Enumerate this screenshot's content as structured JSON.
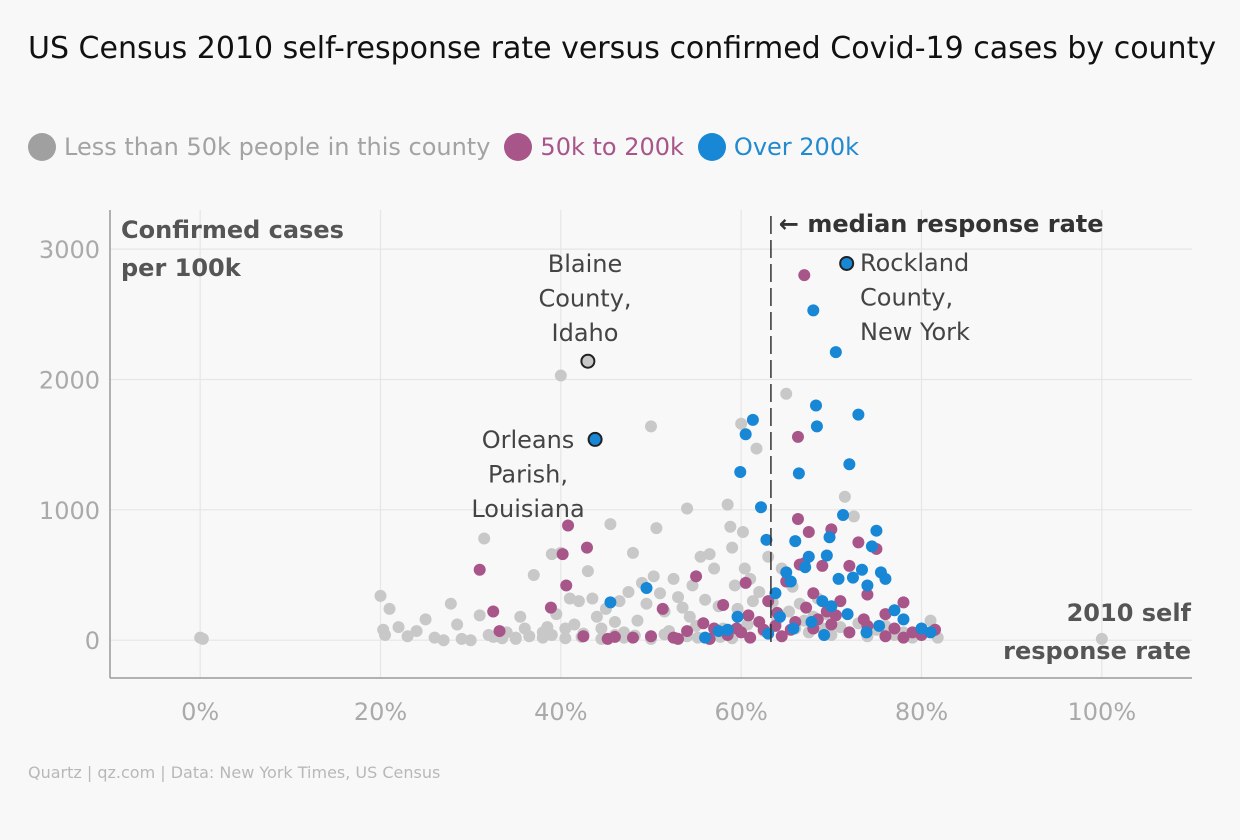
{
  "title": "US Census 2010 self-response rate versus confirmed Covid-19 cases by county",
  "legend": [
    {
      "label": "Less than 50k people in this county",
      "color": "#a3a3a3",
      "dot": "#a0a0a0"
    },
    {
      "label": "50k to 200k",
      "color": "#a8558a",
      "dot": "#a8558a"
    },
    {
      "label": "Over 200k",
      "color": "#238ad0",
      "dot": "#1787d6"
    }
  ],
  "source": "Quartz | qz.com | Data: New York Times, US Census",
  "colors": {
    "small": "#c8c8c8",
    "medium": "#a8558a",
    "large": "#1787d6",
    "axis": "#999999",
    "grid": "#e6e6e6",
    "label": "#555555",
    "tick": "#aaaaaa"
  },
  "chart_data": {
    "type": "scatter",
    "title": "US Census 2010 self-response rate versus confirmed Covid-19 cases by county",
    "xlabel": "2010 self response rate",
    "ylabel": "Confirmed cases per 100k",
    "ylabel_lines": [
      "Confirmed cases",
      "per 100k"
    ],
    "xlabel_lines": [
      "2010 self",
      "response rate"
    ],
    "xlim": [
      -10,
      110
    ],
    "ylim": [
      -290,
      3300
    ],
    "xticks": [
      0,
      20,
      40,
      60,
      80,
      100
    ],
    "xtick_labels": [
      "0%",
      "20%",
      "40%",
      "60%",
      "80%",
      "100%"
    ],
    "yticks": [
      0,
      1000,
      2000,
      3000
    ],
    "ytick_labels": [
      "0",
      "1000",
      "2000",
      "3000"
    ],
    "grid": true,
    "median": {
      "x": 63.3,
      "label": "← median response rate"
    },
    "annotations": [
      {
        "lines": [
          "Blaine",
          "County,",
          "Idaho"
        ],
        "x": 43.0,
        "y": 2140,
        "color": "#c8c8c8"
      },
      {
        "lines": [
          "Orleans",
          "Parish,",
          "Louisiana"
        ],
        "x": 43.8,
        "y": 1540,
        "color": "#1787d6"
      },
      {
        "lines": [
          "Rockland",
          "County,",
          "New York"
        ],
        "x": 71.7,
        "y": 2890,
        "color": "#1787d6"
      }
    ],
    "series": [
      {
        "name": "Less than 50k people in this county",
        "key": "small",
        "points": [
          [
            0,
            20
          ],
          [
            0.3,
            10
          ],
          [
            20,
            340
          ],
          [
            21,
            240
          ],
          [
            20.3,
            80
          ],
          [
            20.5,
            40
          ],
          [
            22,
            100
          ],
          [
            23,
            30
          ],
          [
            24,
            70
          ],
          [
            25,
            160
          ],
          [
            26,
            20
          ],
          [
            27,
            0
          ],
          [
            27.8,
            280
          ],
          [
            28.5,
            120
          ],
          [
            29,
            10
          ],
          [
            30,
            0
          ],
          [
            31,
            190
          ],
          [
            31.5,
            780
          ],
          [
            32,
            40
          ],
          [
            33,
            30
          ],
          [
            34,
            60
          ],
          [
            35,
            20
          ],
          [
            35.5,
            180
          ],
          [
            36,
            90
          ],
          [
            37,
            500
          ],
          [
            38,
            60
          ],
          [
            38.5,
            100
          ],
          [
            39,
            660
          ],
          [
            39.5,
            200
          ],
          [
            40,
            2030
          ],
          [
            40,
            670
          ],
          [
            40.5,
            90
          ],
          [
            41,
            320
          ],
          [
            41.5,
            120
          ],
          [
            42,
            300
          ],
          [
            42.5,
            50
          ],
          [
            43,
            530
          ],
          [
            43.5,
            320
          ],
          [
            44,
            180
          ],
          [
            44.5,
            90
          ],
          [
            45,
            240
          ],
          [
            45.5,
            890
          ],
          [
            46,
            140
          ],
          [
            46.5,
            300
          ],
          [
            47,
            60
          ],
          [
            47.5,
            370
          ],
          [
            48,
            670
          ],
          [
            48.5,
            150
          ],
          [
            49,
            440
          ],
          [
            49.5,
            280
          ],
          [
            50,
            1640
          ],
          [
            50.3,
            490
          ],
          [
            50.6,
            860
          ],
          [
            51,
            360
          ],
          [
            51.5,
            220
          ],
          [
            52,
            70
          ],
          [
            52.5,
            470
          ],
          [
            53,
            330
          ],
          [
            53.5,
            250
          ],
          [
            54,
            1010
          ],
          [
            54.3,
            180
          ],
          [
            54.6,
            420
          ],
          [
            55,
            110
          ],
          [
            55.5,
            640
          ],
          [
            56,
            310
          ],
          [
            56.5,
            660
          ],
          [
            57,
            550
          ],
          [
            57.5,
            260
          ],
          [
            58,
            90
          ],
          [
            58.5,
            1040
          ],
          [
            58.8,
            870
          ],
          [
            59,
            710
          ],
          [
            59.3,
            420
          ],
          [
            59.6,
            240
          ],
          [
            60,
            1660
          ],
          [
            60.2,
            830
          ],
          [
            60.4,
            550
          ],
          [
            60.7,
            120
          ],
          [
            61,
            470
          ],
          [
            61.3,
            300
          ],
          [
            61.7,
            1470
          ],
          [
            62,
            370
          ],
          [
            62.5,
            70
          ],
          [
            63,
            640
          ],
          [
            63.5,
            290
          ],
          [
            64,
            160
          ],
          [
            64.5,
            550
          ],
          [
            65,
            1890
          ],
          [
            65.3,
            220
          ],
          [
            65.7,
            410
          ],
          [
            66,
            90
          ],
          [
            66.5,
            280
          ],
          [
            67,
            150
          ],
          [
            67.5,
            60
          ],
          [
            68,
            180
          ],
          [
            68.5,
            320
          ],
          [
            69,
            90
          ],
          [
            69.5,
            200
          ],
          [
            70,
            40
          ],
          [
            71,
            100
          ],
          [
            71.5,
            1100
          ],
          [
            72,
            60
          ],
          [
            72.5,
            950
          ],
          [
            73,
            130
          ],
          [
            74,
            30
          ],
          [
            75,
            80
          ],
          [
            76,
            110
          ],
          [
            77,
            40
          ],
          [
            78,
            60
          ],
          [
            79,
            20
          ],
          [
            80,
            50
          ],
          [
            81,
            150
          ],
          [
            81.8,
            20
          ],
          [
            100,
            10
          ],
          [
            38,
            20
          ],
          [
            39,
            40
          ],
          [
            40.5,
            15
          ],
          [
            42.3,
            25
          ],
          [
            44.5,
            10
          ],
          [
            46,
            40
          ],
          [
            47,
            20
          ],
          [
            48.2,
            35
          ],
          [
            50,
            10
          ],
          [
            51.5,
            45
          ],
          [
            52.8,
            15
          ],
          [
            54,
            30
          ],
          [
            55.2,
            20
          ],
          [
            56.5,
            10
          ],
          [
            57.7,
            25
          ],
          [
            59,
            15
          ],
          [
            36.5,
            30
          ],
          [
            35,
            10
          ],
          [
            33.5,
            15
          ],
          [
            32.5,
            25
          ]
        ]
      },
      {
        "name": "50k to 200k",
        "key": "medium",
        "points": [
          [
            31,
            540
          ],
          [
            32.5,
            220
          ],
          [
            33.2,
            70
          ],
          [
            38.9,
            250
          ],
          [
            40.2,
            660
          ],
          [
            40.6,
            420
          ],
          [
            40.8,
            880
          ],
          [
            42.5,
            30
          ],
          [
            42.9,
            710
          ],
          [
            45.2,
            10
          ],
          [
            46,
            25
          ],
          [
            48,
            20
          ],
          [
            50,
            30
          ],
          [
            51.3,
            240
          ],
          [
            52.5,
            20
          ],
          [
            55,
            490
          ],
          [
            56.5,
            10
          ],
          [
            58,
            270
          ],
          [
            59.5,
            90
          ],
          [
            60.5,
            440
          ],
          [
            62,
            140
          ],
          [
            63,
            300
          ],
          [
            64,
            210
          ],
          [
            65,
            450
          ],
          [
            65.5,
            80
          ],
          [
            66.3,
            1560
          ],
          [
            66.3,
            930
          ],
          [
            66.5,
            580
          ],
          [
            67,
            590
          ],
          [
            67,
            2800
          ],
          [
            67.5,
            830
          ],
          [
            68,
            360
          ],
          [
            68.5,
            160
          ],
          [
            69,
            570
          ],
          [
            69.5,
            220
          ],
          [
            70,
            850
          ],
          [
            71,
            300
          ],
          [
            72,
            570
          ],
          [
            73,
            750
          ],
          [
            74,
            350
          ],
          [
            75,
            700
          ],
          [
            76,
            200
          ],
          [
            77,
            90
          ],
          [
            78,
            290
          ],
          [
            79,
            60
          ],
          [
            80,
            40
          ],
          [
            81.5,
            80
          ],
          [
            60,
            60
          ],
          [
            61,
            20
          ],
          [
            62.5,
            80
          ],
          [
            64.5,
            30
          ],
          [
            66,
            140
          ],
          [
            68,
            90
          ],
          [
            70,
            120
          ],
          [
            72,
            60
          ],
          [
            74,
            110
          ],
          [
            76,
            30
          ],
          [
            78,
            20
          ],
          [
            58.5,
            40
          ],
          [
            57,
            90
          ],
          [
            55.8,
            130
          ],
          [
            54,
            70
          ],
          [
            53,
            10
          ],
          [
            60.8,
            190
          ],
          [
            63.8,
            110
          ],
          [
            67.2,
            250
          ],
          [
            70.5,
            190
          ],
          [
            73.6,
            160
          ]
        ]
      },
      {
        "name": "Over 200k",
        "key": "large",
        "points": [
          [
            45.5,
            290
          ],
          [
            49.5,
            400
          ],
          [
            56,
            20
          ],
          [
            58.5,
            80
          ],
          [
            59.9,
            1290
          ],
          [
            60.5,
            1580
          ],
          [
            61.3,
            1690
          ],
          [
            62.2,
            1020
          ],
          [
            62.8,
            770
          ],
          [
            63,
            50
          ],
          [
            64.3,
            180
          ],
          [
            65,
            520
          ],
          [
            65.5,
            450
          ],
          [
            66,
            760
          ],
          [
            66.4,
            1280
          ],
          [
            67.1,
            560
          ],
          [
            67.5,
            640
          ],
          [
            68,
            2530
          ],
          [
            68.3,
            1800
          ],
          [
            68.4,
            1640
          ],
          [
            69,
            300
          ],
          [
            69.5,
            650
          ],
          [
            69.8,
            790
          ],
          [
            70,
            260
          ],
          [
            70.5,
            2210
          ],
          [
            70.8,
            470
          ],
          [
            71.3,
            960
          ],
          [
            72,
            1350
          ],
          [
            72.4,
            480
          ],
          [
            73,
            1730
          ],
          [
            73.4,
            540
          ],
          [
            74,
            420
          ],
          [
            74.5,
            720
          ],
          [
            75,
            840
          ],
          [
            75.5,
            520
          ],
          [
            76,
            470
          ],
          [
            77,
            230
          ],
          [
            78,
            160
          ],
          [
            80,
            90
          ],
          [
            81,
            60
          ],
          [
            63.8,
            360
          ],
          [
            65.8,
            90
          ],
          [
            67.8,
            140
          ],
          [
            69.2,
            40
          ],
          [
            71.8,
            200
          ],
          [
            73.9,
            60
          ],
          [
            75.3,
            110
          ],
          [
            59.6,
            180
          ],
          [
            57.5,
            70
          ]
        ]
      }
    ],
    "highlights": [
      {
        "name": "Blaine County, Idaho",
        "key": "small",
        "x": 43.0,
        "y": 2140
      },
      {
        "name": "Orleans Parish, Louisiana",
        "key": "large",
        "x": 43.8,
        "y": 1540
      },
      {
        "name": "Rockland County, New York",
        "key": "large",
        "x": 71.7,
        "y": 2890
      }
    ]
  }
}
